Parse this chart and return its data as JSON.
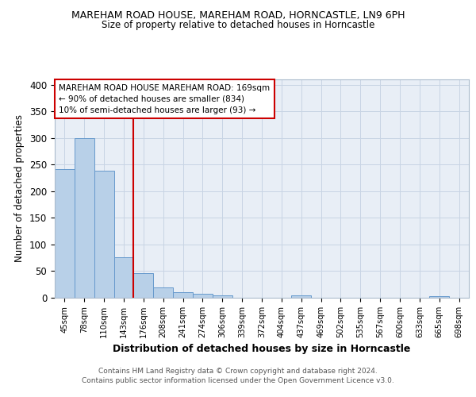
{
  "title": "MAREHAM ROAD HOUSE, MAREHAM ROAD, HORNCASTLE, LN9 6PH",
  "subtitle": "Size of property relative to detached houses in Horncastle",
  "xlabel": "Distribution of detached houses by size in Horncastle",
  "ylabel": "Number of detached properties",
  "bar_labels": [
    "45sqm",
    "78sqm",
    "110sqm",
    "143sqm",
    "176sqm",
    "208sqm",
    "241sqm",
    "274sqm",
    "306sqm",
    "339sqm",
    "372sqm",
    "404sqm",
    "437sqm",
    "469sqm",
    "502sqm",
    "535sqm",
    "567sqm",
    "600sqm",
    "633sqm",
    "665sqm",
    "698sqm"
  ],
  "bar_values": [
    241,
    299,
    239,
    76,
    46,
    20,
    10,
    8,
    5,
    0,
    0,
    0,
    4,
    0,
    0,
    0,
    0,
    0,
    0,
    3,
    0
  ],
  "bar_color": "#b8d0e8",
  "bar_edge_color": "#6699cc",
  "grid_color": "#c8d4e4",
  "bg_color": "#e8eef6",
  "red_line_index": 4,
  "annotation_text": "MAREHAM ROAD HOUSE MAREHAM ROAD: 169sqm\n← 90% of detached houses are smaller (834)\n10% of semi-detached houses are larger (93) →",
  "annotation_box_color": "#ffffff",
  "annotation_box_edge": "#cc0000",
  "red_line_color": "#cc0000",
  "footer_line1": "Contains HM Land Registry data © Crown copyright and database right 2024.",
  "footer_line2": "Contains public sector information licensed under the Open Government Licence v3.0.",
  "ylim": [
    0,
    410
  ],
  "yticks": [
    0,
    50,
    100,
    150,
    200,
    250,
    300,
    350,
    400
  ]
}
